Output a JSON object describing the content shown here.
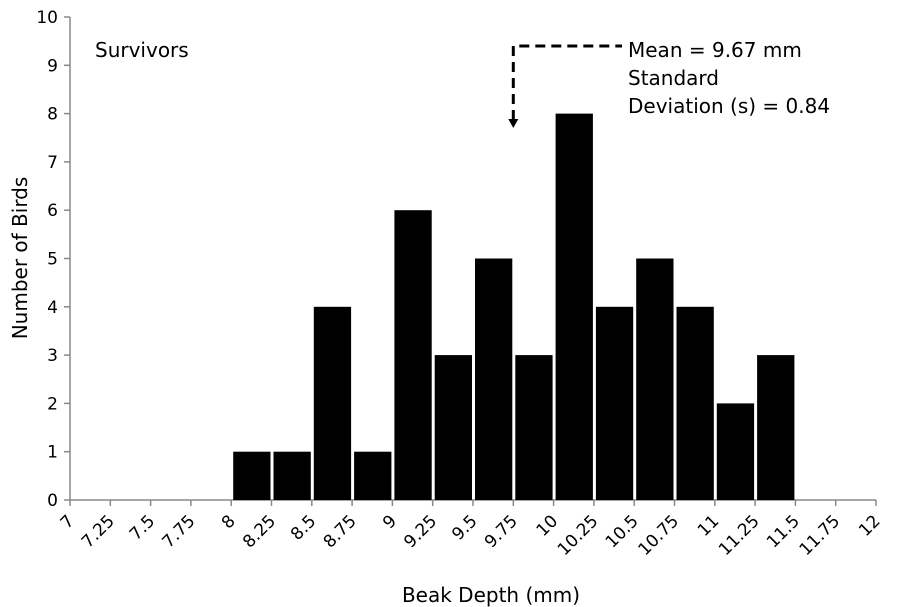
{
  "chart_data": {
    "type": "bar",
    "panel_label": "Survivors",
    "xlabel": "Beak Depth (mm)",
    "ylabel": "Number of Birds",
    "ylim": [
      0,
      10
    ],
    "y_ticks": [
      "0",
      "1",
      "2",
      "3",
      "4",
      "5",
      "6",
      "7",
      "8",
      "9",
      "10"
    ],
    "x_ticks": [
      "7",
      "7.25",
      "7.5",
      "7.75",
      "8",
      "8.25",
      "8.5",
      "8.75",
      "9",
      "9.25",
      "9.5",
      "9.75",
      "10",
      "10.25",
      "10.5",
      "10.75",
      "11",
      "11.25",
      "11.5",
      "11.75",
      "12"
    ],
    "bins": [
      {
        "start": 7.0,
        "value": 0
      },
      {
        "start": 7.25,
        "value": 0
      },
      {
        "start": 7.5,
        "value": 0
      },
      {
        "start": 7.75,
        "value": 0
      },
      {
        "start": 8.0,
        "value": 1
      },
      {
        "start": 8.25,
        "value": 1
      },
      {
        "start": 8.5,
        "value": 4
      },
      {
        "start": 8.75,
        "value": 1
      },
      {
        "start": 9.0,
        "value": 6
      },
      {
        "start": 9.25,
        "value": 3
      },
      {
        "start": 9.5,
        "value": 5
      },
      {
        "start": 9.75,
        "value": 3
      },
      {
        "start": 10.0,
        "value": 8
      },
      {
        "start": 10.25,
        "value": 4
      },
      {
        "start": 10.5,
        "value": 5
      },
      {
        "start": 10.75,
        "value": 4
      },
      {
        "start": 11.0,
        "value": 2
      },
      {
        "start": 11.25,
        "value": 3
      },
      {
        "start": 11.5,
        "value": 0
      },
      {
        "start": 11.75,
        "value": 0
      }
    ],
    "annotation": {
      "lines": [
        "Mean = 9.67 mm",
        "Standard",
        "Deviation (s) = 0.84"
      ],
      "mean": 9.67,
      "std_dev": 0.84
    },
    "grid": false,
    "bar_color": "#000000"
  }
}
